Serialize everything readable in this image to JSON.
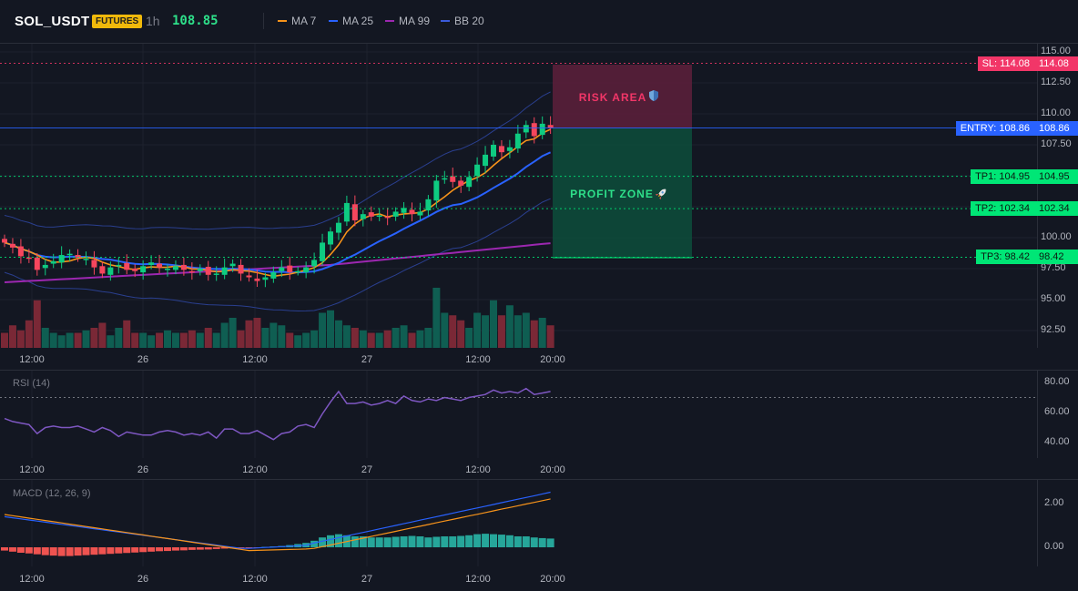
{
  "header": {
    "symbol": "SOL_USDT",
    "badge": "FUTURES",
    "timeframe": "1h",
    "last_price": "108.85",
    "legend": [
      {
        "label": "MA 7",
        "color": "#f7931a"
      },
      {
        "label": "MA 25",
        "color": "#2962ff"
      },
      {
        "label": "MA 99",
        "color": "#9c27b0"
      },
      {
        "label": "BB 20",
        "color": "#2a3f8f"
      }
    ]
  },
  "price_axis": [
    "115.00",
    "112.50",
    "110.00",
    "107.50",
    "105.00",
    "102.50",
    "100.00",
    "97.50",
    "95.00",
    "92.50"
  ],
  "time_labels": [
    "12:00",
    "26",
    "12:00",
    "27",
    "12:00",
    "20:00"
  ],
  "zones": {
    "risk_label": "RISK AREA",
    "profit_label": "PROFIT ZONE"
  },
  "levels": [
    {
      "name": "sl",
      "tag": "SL: 114.08",
      "value": "114.08",
      "price": 114.08,
      "color": "#f23668",
      "text": "#ffffff"
    },
    {
      "name": "entry",
      "tag": "ENTRY: 108.86",
      "value": "108.86",
      "price": 108.86,
      "color": "#2962ff",
      "text": "#ffffff"
    },
    {
      "name": "tp1",
      "tag": "TP1: 104.95",
      "value": "104.95",
      "price": 104.95,
      "color": "#00e676",
      "text": "#0b1a10"
    },
    {
      "name": "tp2",
      "tag": "TP2: 102.34",
      "value": "102.34",
      "price": 102.34,
      "color": "#00e676",
      "text": "#0b1a10"
    },
    {
      "name": "tp3",
      "tag": "TP3: 98.42",
      "value": "98.42",
      "price": 98.42,
      "color": "#00e676",
      "text": "#0b1a10"
    }
  ],
  "rsi": {
    "label": "RSI (14)",
    "axis": [
      "80.00",
      "60.00",
      "40.00"
    ]
  },
  "macd": {
    "label": "MACD (12, 26, 9)",
    "axis": [
      "2.00",
      "0.00"
    ]
  },
  "colors": {
    "up": "#0ecb81",
    "down": "#f6465d",
    "bg": "#131722",
    "grid": "#1e222d"
  },
  "chart_data": {
    "type": "candlestick",
    "timeframe": "1h",
    "ylim": [
      91,
      115.5
    ],
    "y_ticks": [
      92.5,
      95,
      97.5,
      100,
      102.5,
      105,
      107.5,
      110,
      112.5,
      115
    ],
    "x_ticks": [
      "12:00",
      "26",
      "12:00",
      "27",
      "12:00",
      "20:00"
    ],
    "closes": [
      99.6,
      99.2,
      98.5,
      98.3,
      97.4,
      97.8,
      98.1,
      98.6,
      98.7,
      98.4,
      98.3,
      97.6,
      97.1,
      97.6,
      97.8,
      97.4,
      97.3,
      97.7,
      98.0,
      97.6,
      97.5,
      97.7,
      97.4,
      97.2,
      97.5,
      97.0,
      97.1,
      97.6,
      97.9,
      97.1,
      96.8,
      96.5,
      96.8,
      97.2,
      97.6,
      97.2,
      97.3,
      97.6,
      98.2,
      99.6,
      100.5,
      101.2,
      102.8,
      101.4,
      101.9,
      101.7,
      101.8,
      101.6,
      102.1,
      102.4,
      101.9,
      102.1,
      103.1,
      104.6,
      104.8,
      104.5,
      104.2,
      104.9,
      105.9,
      106.7,
      107.5,
      106.9,
      107.3,
      108.4,
      109.1,
      108.2,
      109.2,
      108.85
    ],
    "volume_scale": "relative"
  }
}
